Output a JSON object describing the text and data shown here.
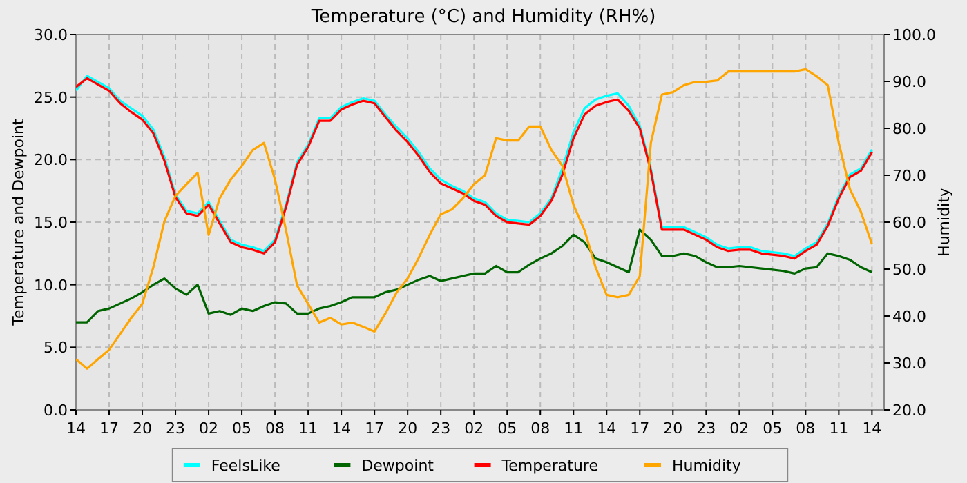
{
  "chart_data": {
    "type": "line",
    "title": "Temperature (°C) and Humidity (RH%)",
    "ylabel": "Temperature and Dewpoint",
    "y2label": "Humidity",
    "categories": [
      "14",
      null,
      null,
      "17",
      null,
      null,
      "20",
      null,
      null,
      "23",
      null,
      null,
      "02",
      null,
      null,
      "05",
      null,
      null,
      "08",
      null,
      null,
      "11",
      null,
      null,
      "14",
      null,
      null,
      "17",
      null,
      null,
      "20",
      null,
      null,
      "23",
      null,
      null,
      "02",
      null,
      null,
      "05",
      null,
      null,
      "08",
      null,
      null,
      "11",
      null,
      null,
      "14",
      null,
      null,
      "17",
      null,
      null,
      "20",
      null,
      null,
      "23",
      null,
      null,
      "02",
      null,
      null,
      "05",
      null,
      null,
      "08",
      null,
      null,
      "11",
      null,
      null,
      "14"
    ],
    "ylim": [
      0,
      30
    ],
    "yticks": [
      {
        "value": 0,
        "label": "0.0"
      },
      {
        "value": 5,
        "label": "5.0"
      },
      {
        "value": 10,
        "label": "10.0"
      },
      {
        "value": 15,
        "label": "15.0"
      },
      {
        "value": 20,
        "label": "20.0"
      },
      {
        "value": 25,
        "label": "25.0"
      },
      {
        "value": 30,
        "label": "30.0"
      }
    ],
    "y2lim": [
      20,
      100
    ],
    "y2ticks": [
      {
        "value": 20,
        "label": "20.0"
      },
      {
        "value": 30,
        "label": "30.0"
      },
      {
        "value": 40,
        "label": "40.0"
      },
      {
        "value": 50,
        "label": "50.0"
      },
      {
        "value": 60,
        "label": "60.0"
      },
      {
        "value": 70,
        "label": "70.0"
      },
      {
        "value": 80,
        "label": "80.0"
      },
      {
        "value": 90,
        "label": "90.0"
      },
      {
        "value": 100,
        "label": "100.0"
      }
    ],
    "grid": true,
    "legend": "bottom",
    "line_style": "solid",
    "marker": "none",
    "series": [
      {
        "name": "FeelsLike",
        "color": "#00ffff",
        "values": [
          25.5,
          26.7,
          26.2,
          25.7,
          24.7,
          24.1,
          23.5,
          22.4,
          20.2,
          17.2,
          15.9,
          15.7,
          16.6,
          15.1,
          13.6,
          13.2,
          13.0,
          12.7,
          13.6,
          16.4,
          19.8,
          21.2,
          23.3,
          23.3,
          24.2,
          24.6,
          24.9,
          24.7,
          23.6,
          22.6,
          21.7,
          20.6,
          19.3,
          18.4,
          17.9,
          17.5,
          16.9,
          16.6,
          15.7,
          15.2,
          15.1,
          15.0,
          15.7,
          16.9,
          19.3,
          22.2,
          24.1,
          24.8,
          25.1,
          25.3,
          24.3,
          22.7,
          19.3,
          14.6,
          14.6,
          14.6,
          14.2,
          13.8,
          13.2,
          12.9,
          13.0,
          13.0,
          12.7,
          12.6,
          12.5,
          12.3,
          12.9,
          13.4,
          14.9,
          17.1,
          18.8,
          19.3,
          20.8
        ]
      },
      {
        "name": "Dewpoint",
        "color": "#006400",
        "values": [
          7.0,
          7.0,
          7.9,
          8.1,
          8.5,
          8.9,
          9.4,
          10.0,
          10.5,
          9.7,
          9.2,
          10.0,
          7.7,
          7.9,
          7.6,
          8.1,
          7.9,
          8.3,
          8.6,
          8.5,
          7.7,
          7.7,
          8.1,
          8.3,
          8.6,
          9.0,
          9.0,
          9.0,
          9.4,
          9.6,
          10.0,
          10.4,
          10.7,
          10.3,
          10.5,
          10.7,
          10.9,
          10.9,
          11.5,
          11.0,
          11.0,
          11.6,
          12.1,
          12.5,
          13.1,
          14.0,
          13.4,
          12.1,
          11.8,
          11.4,
          11.0,
          14.4,
          13.6,
          12.3,
          12.3,
          12.5,
          12.3,
          11.8,
          11.4,
          11.4,
          11.5,
          11.4,
          11.3,
          11.2,
          11.1,
          10.9,
          11.3,
          11.4,
          12.5,
          12.3,
          12.0,
          11.4,
          11.0
        ]
      },
      {
        "name": "Temperature",
        "color": "#ff0000",
        "values": [
          25.8,
          26.5,
          26.0,
          25.5,
          24.5,
          23.8,
          23.2,
          22.1,
          19.9,
          17.0,
          15.7,
          15.5,
          16.4,
          14.9,
          13.4,
          13.0,
          12.8,
          12.5,
          13.4,
          16.2,
          19.6,
          21.0,
          23.1,
          23.1,
          24.0,
          24.4,
          24.7,
          24.5,
          23.4,
          22.3,
          21.4,
          20.3,
          19.0,
          18.1,
          17.7,
          17.3,
          16.7,
          16.4,
          15.5,
          15.0,
          14.9,
          14.8,
          15.5,
          16.7,
          18.8,
          21.7,
          23.6,
          24.3,
          24.6,
          24.8,
          23.9,
          22.5,
          19.1,
          14.4,
          14.4,
          14.4,
          14.0,
          13.6,
          13.0,
          12.7,
          12.8,
          12.8,
          12.5,
          12.4,
          12.3,
          12.1,
          12.7,
          13.2,
          14.7,
          16.9,
          18.6,
          19.1,
          20.6
        ]
      },
      {
        "name": "Humidity",
        "color": "#ffa500",
        "axis": "y2",
        "values": [
          30.8,
          28.8,
          30.8,
          32.8,
          36.2,
          39.6,
          42.6,
          50.4,
          60.2,
          65.6,
          68.1,
          70.5,
          57.3,
          65.1,
          69.1,
          72.0,
          75.4,
          76.9,
          69.1,
          58.3,
          46.5,
          42.6,
          38.6,
          39.6,
          38.2,
          38.6,
          37.7,
          36.7,
          40.6,
          45.0,
          48.0,
          52.4,
          57.3,
          61.7,
          62.7,
          65.1,
          68.1,
          70.0,
          77.9,
          77.4,
          77.4,
          80.4,
          80.4,
          75.4,
          72.0,
          63.7,
          58.3,
          50.4,
          44.5,
          44.0,
          44.5,
          48.5,
          76.9,
          87.2,
          87.7,
          89.2,
          89.9,
          89.9,
          90.2,
          92.1,
          92.1,
          92.1,
          92.1,
          92.1,
          92.1,
          92.1,
          92.6,
          91.1,
          89.2,
          76.9,
          67.1,
          62.2,
          55.3
        ]
      }
    ]
  }
}
